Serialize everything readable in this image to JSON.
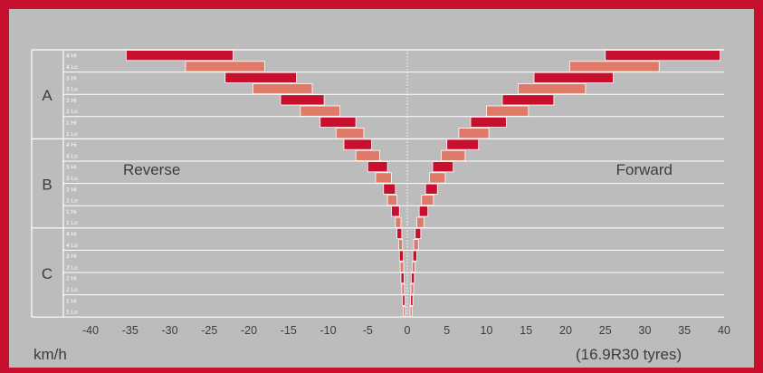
{
  "chart_data": {
    "type": "bar",
    "ranges": [
      {
        "name": "A",
        "gears": [
          "4 Hi",
          "4 Lo",
          "3 Hi",
          "3 Lo",
          "2 Hi",
          "2 Lo",
          "1 Hi",
          "1 Lo"
        ]
      },
      {
        "name": "B",
        "gears": [
          "4 Hi",
          "4 Lo",
          "3 Hi",
          "3 Lo",
          "2 Hi",
          "2 Lo",
          "1 Hi",
          "1 Lo"
        ]
      },
      {
        "name": "C",
        "gears": [
          "4 Hi",
          "4 Lo",
          "3 Hi",
          "3 Lo",
          "2 Hi",
          "2 Lo",
          "1 Hi",
          "1 Lo"
        ]
      }
    ],
    "series": [
      {
        "name": "Reverse",
        "ranges": [
          [
            [
              -35.5,
              -22.0
            ],
            [
              -28.0,
              -18.0
            ],
            [
              -23.0,
              -14.0
            ],
            [
              -19.5,
              -12.0
            ],
            [
              -16.0,
              -10.5
            ],
            [
              -13.5,
              -8.5
            ],
            [
              -11.0,
              -6.5
            ],
            [
              -9.0,
              -5.5
            ]
          ],
          [
            [
              -8.0,
              -4.5
            ],
            [
              -6.5,
              -3.5
            ],
            [
              -5.0,
              -2.5
            ],
            [
              -4.0,
              -2.0
            ],
            [
              -3.0,
              -1.5
            ],
            [
              -2.5,
              -1.3
            ],
            [
              -2.0,
              -1.0
            ],
            [
              -1.5,
              -0.8
            ]
          ],
          [
            [
              -1.3,
              -0.7
            ],
            [
              -1.1,
              -0.6
            ],
            [
              -1.0,
              -0.5
            ],
            [
              -0.9,
              -0.45
            ],
            [
              -0.8,
              -0.4
            ],
            [
              -0.7,
              -0.35
            ],
            [
              -0.6,
              -0.3
            ],
            [
              -0.5,
              -0.25
            ]
          ]
        ]
      },
      {
        "name": "Forward",
        "ranges": [
          [
            [
              25.0,
              39.5
            ],
            [
              20.5,
              31.8
            ],
            [
              16.0,
              26.0
            ],
            [
              14.0,
              22.5
            ],
            [
              12.0,
              18.5
            ],
            [
              10.0,
              15.3
            ],
            [
              8.0,
              12.5
            ],
            [
              6.5,
              10.3
            ]
          ],
          [
            [
              5.0,
              9.0
            ],
            [
              4.3,
              7.3
            ],
            [
              3.2,
              5.8
            ],
            [
              2.8,
              4.8
            ],
            [
              2.3,
              3.8
            ],
            [
              1.8,
              3.3
            ],
            [
              1.5,
              2.6
            ],
            [
              1.2,
              2.1
            ]
          ],
          [
            [
              1.0,
              1.7
            ],
            [
              0.8,
              1.4
            ],
            [
              0.7,
              1.2
            ],
            [
              0.6,
              1.0
            ],
            [
              0.5,
              0.9
            ],
            [
              0.45,
              0.8
            ],
            [
              0.4,
              0.7
            ],
            [
              0.35,
              0.6
            ]
          ]
        ]
      }
    ],
    "xlim": [
      -40,
      40
    ],
    "xticks": [
      -40,
      -35,
      -30,
      -25,
      -20,
      -15,
      -10,
      -5,
      0,
      5,
      10,
      15,
      20,
      25,
      30,
      35,
      40
    ],
    "xlabel": "km/h",
    "note": "(16.9R30 tyres)",
    "colors": {
      "hi": "#c8102e",
      "lo": "#e07a68",
      "background": "#bcbcbc",
      "frame": "#c8102e",
      "text": "#3c3c3c",
      "grid": "#ffffff"
    }
  }
}
